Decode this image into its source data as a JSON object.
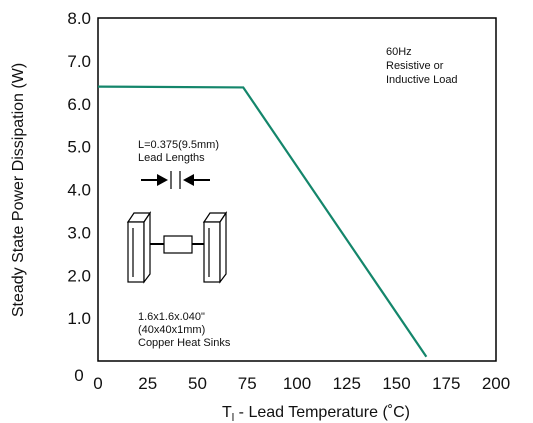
{
  "chart_data": {
    "type": "line",
    "xlabel_main": "T",
    "xlabel_sub": "l",
    "xlabel_rest": " - Lead Temperature (˚C)",
    "ylabel": "Steady State Power Dissipation (W)",
    "xlim": [
      0,
      200
    ],
    "ylim": [
      0,
      8.0
    ],
    "x_ticks": [
      "0",
      "25",
      "50",
      "75",
      "100",
      "125",
      "150",
      "175",
      "200"
    ],
    "y_ticks": [
      "1.0",
      "2.0",
      "3.0",
      "4.0",
      "5.0",
      "6.0",
      "7.0",
      "8.0"
    ],
    "y_origin_label": "0",
    "grid": false,
    "series": [
      {
        "x": [
          0,
          73,
          165
        ],
        "y": [
          6.4,
          6.38,
          0.1
        ]
      }
    ],
    "line_color": "#14866b"
  },
  "annotations": {
    "top_right": [
      "60Hz",
      "Resistive or",
      "Inductive Load"
    ],
    "lead_length": [
      "L=0.375(9.5mm)",
      "Lead Lengths"
    ],
    "heat_sinks": [
      "1.6x1.6x.040\"",
      "(40x40x1mm)",
      "Copper Heat Sinks"
    ]
  }
}
